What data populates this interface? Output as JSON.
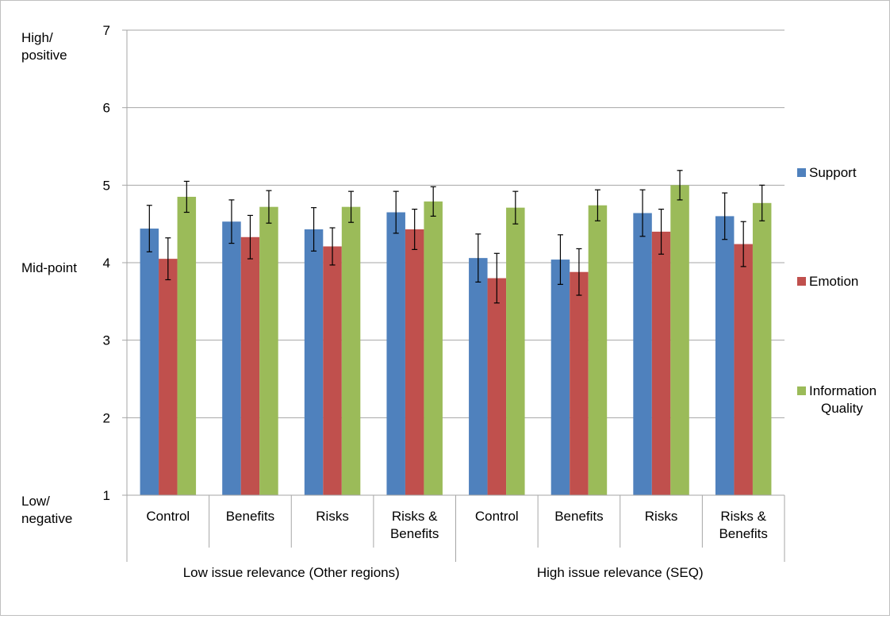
{
  "chart_data": {
    "type": "bar",
    "title": "",
    "xlabel": "",
    "ylabel": "",
    "ylim": [
      1,
      7
    ],
    "yticks": [
      1,
      2,
      3,
      4,
      5,
      6,
      7
    ],
    "grid": true,
    "legend_position": "right",
    "y_annotations": {
      "high": [
        "High/",
        "positive"
      ],
      "mid": [
        "Mid-point"
      ],
      "low": [
        "Low/",
        "negative"
      ]
    },
    "groups": [
      {
        "label": "Low issue relevance (Other regions)",
        "categories": [
          "Control",
          "Benefits",
          "Risks",
          "Risks & Benefits"
        ]
      },
      {
        "label": "High issue relevance (SEQ)",
        "categories": [
          "Control",
          "Benefits",
          "Risks",
          "Risks & Benefits"
        ]
      }
    ],
    "categories": [
      "Control",
      "Benefits",
      "Risks",
      "Risks & Benefits",
      "Control",
      "Benefits",
      "Risks",
      "Risks & Benefits"
    ],
    "series": [
      {
        "name": "Support",
        "color": "#4f81bd",
        "values": [
          4.44,
          4.53,
          4.43,
          4.65,
          4.06,
          4.04,
          4.64,
          4.6
        ],
        "error": [
          0.3,
          0.28,
          0.28,
          0.27,
          0.31,
          0.32,
          0.3,
          0.3
        ]
      },
      {
        "name": "Emotion",
        "color": "#c0504d",
        "values": [
          4.05,
          4.33,
          4.21,
          4.43,
          3.8,
          3.88,
          4.4,
          4.24
        ],
        "error": [
          0.27,
          0.28,
          0.24,
          0.26,
          0.32,
          0.3,
          0.29,
          0.29
        ]
      },
      {
        "name": "Information Quality",
        "color": "#9bbb59",
        "values": [
          4.85,
          4.72,
          4.72,
          4.79,
          4.71,
          4.74,
          5.0,
          4.77
        ],
        "error": [
          0.2,
          0.21,
          0.2,
          0.19,
          0.21,
          0.2,
          0.19,
          0.23
        ]
      }
    ]
  }
}
